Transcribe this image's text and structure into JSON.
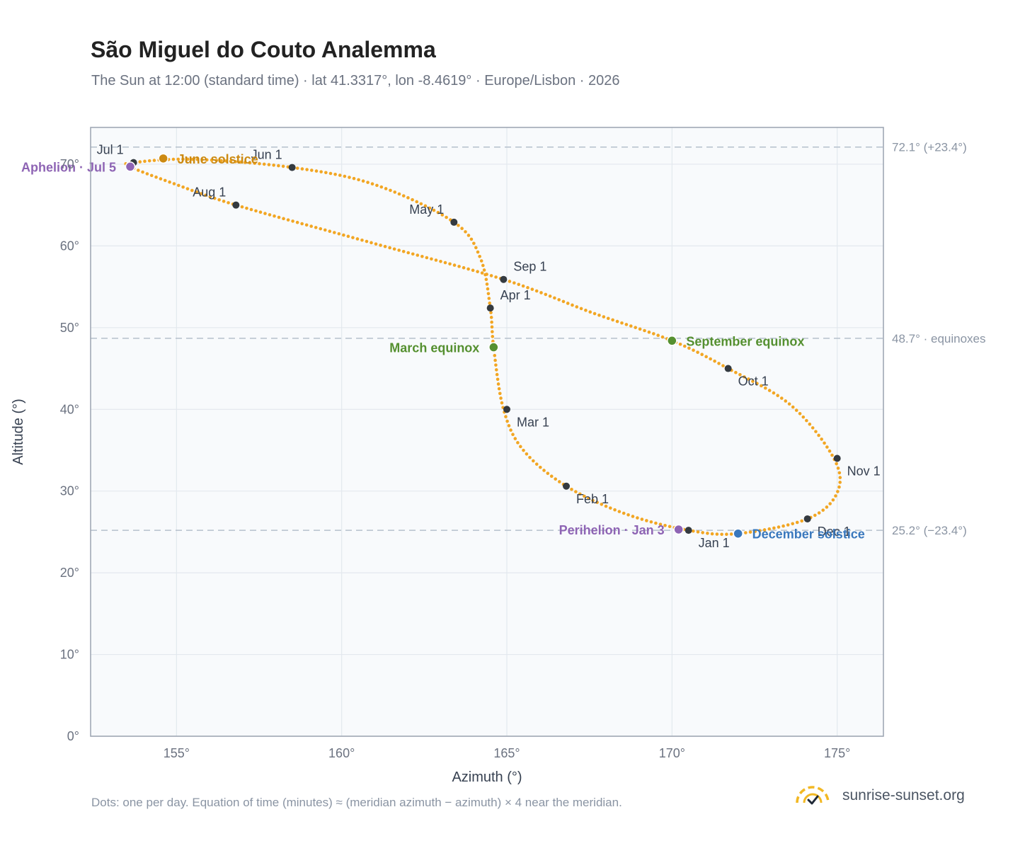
{
  "title": "São Miguel do Couto Analemma",
  "subtitle": "The Sun at 12:00 (standard time) · lat 41.3317°, lon -8.4619° · Europe/Lisbon · 2026",
  "footnote": "Dots: one per day. Equation of time (minutes) ≈ (meridian azimuth − azimuth) × 4 near the meridian.",
  "brand": {
    "text": "sunrise-sunset.org",
    "icon": "sun-logo-icon"
  },
  "colors": {
    "curve": "#f2a623",
    "month_marker": "#343a40",
    "june_solstice": "#cc8a12",
    "december_solstice": "#3a78bd",
    "equinox": "#559030",
    "apsis": "#8e64b4",
    "reference_line": "#b5c0cc",
    "plot_background": "#f8fafc",
    "grid": "#e3e8ee",
    "frame": "#9aa3b0"
  },
  "chart_data": {
    "type": "scatter",
    "xlabel": "Azimuth (°)",
    "ylabel": "Altitude (°)",
    "xlim": [
      152.4,
      176.4
    ],
    "ylim": [
      0,
      74.5
    ],
    "xticks": [
      155,
      160,
      165,
      170,
      175
    ],
    "xtick_labels": [
      "155°",
      "160°",
      "165°",
      "170°",
      "175°"
    ],
    "yticks": [
      0,
      10,
      20,
      30,
      40,
      50,
      60,
      70
    ],
    "ytick_labels": [
      "0°",
      "10°",
      "20°",
      "30°",
      "40°",
      "50°",
      "60°",
      "70°"
    ],
    "grid": true,
    "curve_anchors": [
      {
        "az": 170.5,
        "alt": 25.2
      },
      {
        "az": 168.6,
        "alt": 27.2
      },
      {
        "az": 166.8,
        "alt": 30.6
      },
      {
        "az": 165.5,
        "alt": 35.0
      },
      {
        "az": 164.9,
        "alt": 40.0
      },
      {
        "az": 164.6,
        "alt": 47.6
      },
      {
        "az": 164.5,
        "alt": 52.4
      },
      {
        "az": 164.2,
        "alt": 58.5
      },
      {
        "az": 163.4,
        "alt": 62.9
      },
      {
        "az": 161.0,
        "alt": 67.5
      },
      {
        "az": 158.5,
        "alt": 69.6
      },
      {
        "az": 155.5,
        "alt": 70.6
      },
      {
        "az": 153.7,
        "alt": 70.2
      },
      {
        "az": 153.6,
        "alt": 69.7
      },
      {
        "az": 154.8,
        "alt": 67.8
      },
      {
        "az": 156.8,
        "alt": 65.0
      },
      {
        "az": 160.8,
        "alt": 60.5
      },
      {
        "az": 164.9,
        "alt": 55.9
      },
      {
        "az": 167.6,
        "alt": 51.8
      },
      {
        "az": 170.0,
        "alt": 48.4
      },
      {
        "az": 171.7,
        "alt": 45.0
      },
      {
        "az": 173.6,
        "alt": 40.5
      },
      {
        "az": 174.9,
        "alt": 34.0
      },
      {
        "az": 175.0,
        "alt": 29.8
      },
      {
        "az": 174.1,
        "alt": 26.6
      },
      {
        "az": 172.0,
        "alt": 24.8
      },
      {
        "az": 170.5,
        "alt": 25.2
      }
    ],
    "month_markers": [
      {
        "label": "Jan 1",
        "az": 170.5,
        "alt": 25.2,
        "side": "below-right"
      },
      {
        "label": "Feb 1",
        "az": 166.8,
        "alt": 30.6,
        "side": "below-right"
      },
      {
        "label": "Mar 1",
        "az": 165.0,
        "alt": 40.0,
        "side": "below-right"
      },
      {
        "label": "Apr 1",
        "az": 164.5,
        "alt": 52.4,
        "side": "above-right"
      },
      {
        "label": "May 1",
        "az": 163.4,
        "alt": 62.9,
        "side": "above-left"
      },
      {
        "label": "Jun 1",
        "az": 158.5,
        "alt": 69.6,
        "side": "above-left"
      },
      {
        "label": "Jul 1",
        "az": 153.7,
        "alt": 70.2,
        "side": "above-left"
      },
      {
        "label": "Aug 1",
        "az": 156.8,
        "alt": 65.0,
        "side": "above-left"
      },
      {
        "label": "Sep 1",
        "az": 164.9,
        "alt": 55.9,
        "side": "above-right"
      },
      {
        "label": "Oct 1",
        "az": 171.7,
        "alt": 45.0,
        "side": "below-right"
      },
      {
        "label": "Nov 1",
        "az": 175.0,
        "alt": 34.0,
        "side": "below-right"
      },
      {
        "label": "Dec 1",
        "az": 174.1,
        "alt": 26.6,
        "side": "below-right"
      }
    ],
    "events": [
      {
        "label": "June solstice",
        "az": 154.6,
        "alt": 70.7,
        "color_key": "june_solstice",
        "side": "right"
      },
      {
        "label": "December solstice",
        "az": 172.0,
        "alt": 24.8,
        "color_key": "december_solstice",
        "side": "right"
      },
      {
        "label": "March equinox",
        "az": 164.6,
        "alt": 47.6,
        "color_key": "equinox",
        "side": "left"
      },
      {
        "label": "September equinox",
        "az": 170.0,
        "alt": 48.4,
        "color_key": "equinox",
        "side": "right"
      },
      {
        "label": "Aphelion · Jul 5",
        "az": 153.6,
        "alt": 69.7,
        "color_key": "apsis",
        "side": "left"
      },
      {
        "label": "Perihelion · Jan 3",
        "az": 170.2,
        "alt": 25.3,
        "color_key": "apsis",
        "side": "left"
      }
    ],
    "reference_lines": [
      {
        "alt": 72.1,
        "label": "72.1° (+23.4°)"
      },
      {
        "alt": 48.7,
        "label": "48.7° · equinoxes"
      },
      {
        "alt": 25.2,
        "label": "25.2° (−23.4°)"
      }
    ]
  }
}
